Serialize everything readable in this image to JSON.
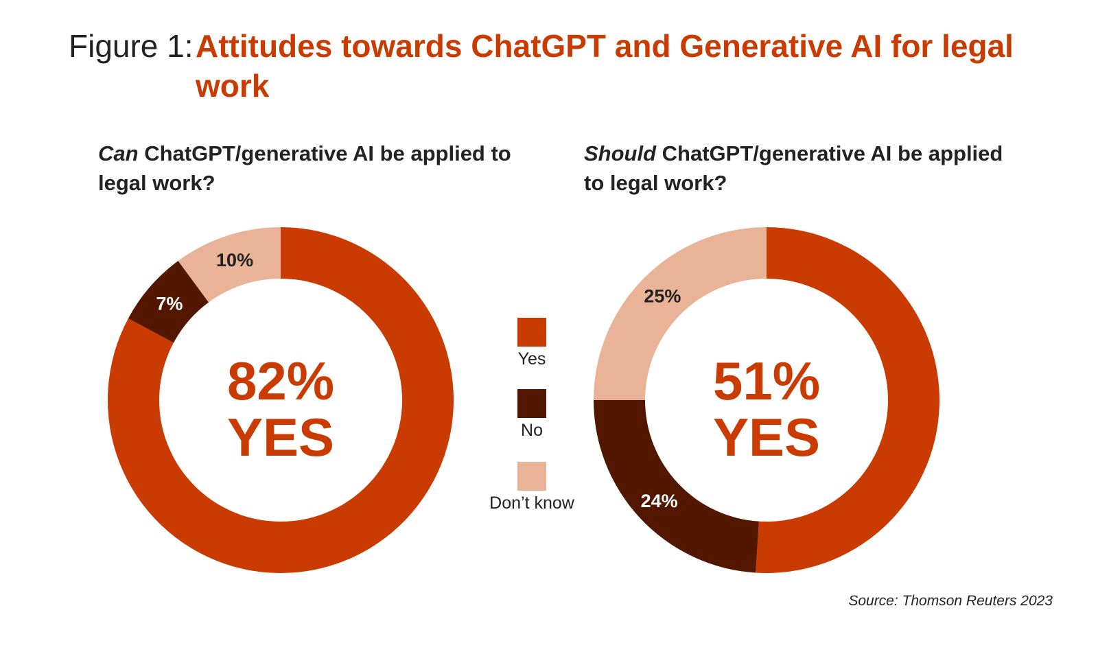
{
  "figure": {
    "prefix": "Figure 1:",
    "title": "Attitudes towards ChatGPT and Generative AI for legal work"
  },
  "colors": {
    "yes": "#c93b00",
    "no": "#531700",
    "dont_know": "#e9b398",
    "label_dark_bg": "#ffffff",
    "label_light_bg": "#222222"
  },
  "legend": [
    {
      "label": "Yes",
      "color_key": "yes"
    },
    {
      "label": "No",
      "color_key": "no"
    },
    {
      "label": "Don’t know",
      "color_key": "dont_know"
    }
  ],
  "chart_data": [
    {
      "type": "pie",
      "donut": true,
      "title_emphasis": "Can",
      "title_rest": " ChatGPT/generative AI be applied to legal work?",
      "categories": [
        "Yes",
        "No",
        "Don’t know"
      ],
      "values": [
        82,
        7,
        10
      ],
      "labels": [
        "82%",
        "7%",
        "10%"
      ],
      "center_value": "82%",
      "center_label": "YES"
    },
    {
      "type": "pie",
      "donut": true,
      "title_emphasis": "Should",
      "title_rest": " ChatGPT/generative AI be applied to legal work?",
      "categories": [
        "Yes",
        "No",
        "Don’t know"
      ],
      "values": [
        51,
        24,
        25
      ],
      "labels": [
        "51%",
        "24%",
        "25%"
      ],
      "center_value": "51%",
      "center_label": "YES"
    }
  ],
  "source": "Source: Thomson Reuters 2023"
}
